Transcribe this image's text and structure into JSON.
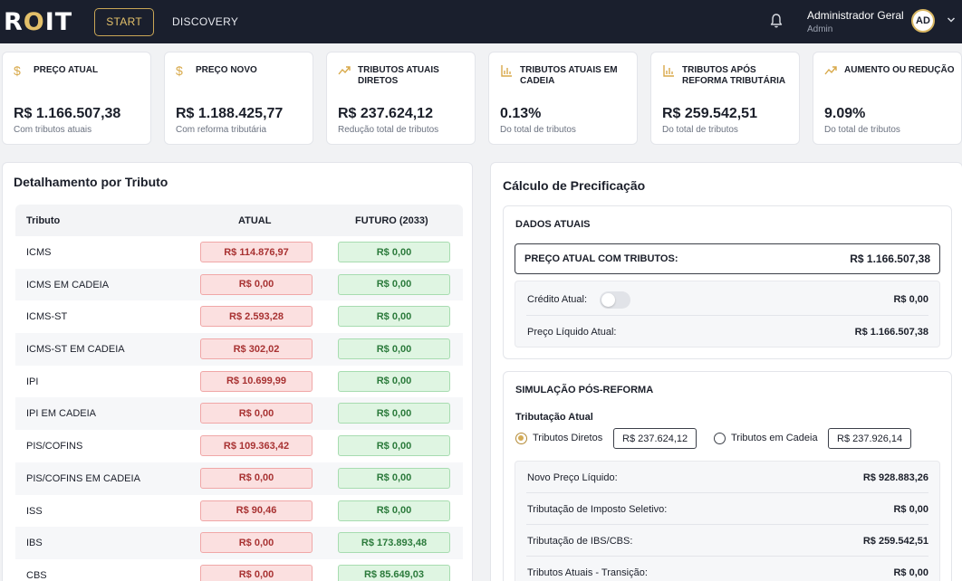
{
  "topbar": {
    "logo_prefix": "R",
    "logo_o": "O",
    "logo_suffix": "IT",
    "nav": {
      "start": "START",
      "discovery": "DISCOVERY"
    },
    "user": {
      "name": "Administrador Geral",
      "role": "Admin",
      "initials": "AD"
    }
  },
  "colors": {
    "accent": "#e3c06a",
    "topbar": "#1a1f2d",
    "negative": "#a83232",
    "positive": "#2b7a3b"
  },
  "cards": [
    {
      "icon": "dollar-icon",
      "title": "PREÇO ATUAL",
      "value": "R$ 1.166.507,38",
      "sub": "Com tributos atuais"
    },
    {
      "icon": "dollar-icon",
      "title": "PREÇO NOVO",
      "value": "R$ 1.188.425,77",
      "sub": "Com reforma tributária"
    },
    {
      "icon": "trend-up-icon",
      "title": "TRIBUTOS ATUAIS DIRETOS",
      "value": "R$ 237.624,12",
      "sub": "Redução total de tributos"
    },
    {
      "icon": "bar-chart-icon",
      "title": "TRIBUTOS ATUAIS EM CADEIA",
      "value": "0.13%",
      "sub": "Do total de tributos"
    },
    {
      "icon": "bar-chart-icon",
      "title": "TRIBUTOS APÓS REFORMA TRIBUTÁRIA",
      "value": "R$ 259.542,51",
      "sub": "Do total de tributos"
    },
    {
      "icon": "trend-up-icon",
      "title": "AUMENTO OU REDUÇÃO",
      "value": "9.09%",
      "sub": "Do total de tributos"
    }
  ],
  "detail": {
    "title": "Detalhamento por Tributo",
    "headers": {
      "tributo": "Tributo",
      "atual": "ATUAL",
      "futuro": "FUTURO (2033)"
    },
    "rows": [
      {
        "name": "ICMS",
        "atual": "R$ 114.876,97",
        "futuro": "R$ 0,00"
      },
      {
        "name": "ICMS EM CADEIA",
        "atual": "R$ 0,00",
        "futuro": "R$ 0,00"
      },
      {
        "name": "ICMS-ST",
        "atual": "R$ 2.593,28",
        "futuro": "R$ 0,00"
      },
      {
        "name": "ICMS-ST EM CADEIA",
        "atual": "R$ 302,02",
        "futuro": "R$ 0,00"
      },
      {
        "name": "IPI",
        "atual": "R$ 10.699,99",
        "futuro": "R$ 0,00"
      },
      {
        "name": "IPI EM CADEIA",
        "atual": "R$ 0,00",
        "futuro": "R$ 0,00"
      },
      {
        "name": "PIS/COFINS",
        "atual": "R$ 109.363,42",
        "futuro": "R$ 0,00"
      },
      {
        "name": "PIS/COFINS EM CADEIA",
        "atual": "R$ 0,00",
        "futuro": "R$ 0,00"
      },
      {
        "name": "ISS",
        "atual": "R$ 90,46",
        "futuro": "R$ 0,00"
      },
      {
        "name": "IBS",
        "atual": "R$ 0,00",
        "futuro": "R$ 173.893,48"
      },
      {
        "name": "CBS",
        "atual": "R$ 0,00",
        "futuro": "R$ 85.649,03"
      }
    ]
  },
  "pricing": {
    "title": "Cálculo de Precificação",
    "current": {
      "title": "DADOS ATUAIS",
      "price_label": "PREÇO ATUAL COM TRIBUTOS:",
      "price_value": "R$ 1.166.507,38",
      "credit_label": "Crédito Atual:",
      "credit_value": "R$ 0,00",
      "credit_enabled": false,
      "net_label": "Preço Líquido Atual:",
      "net_value": "R$ 1.166.507,38"
    },
    "simulation": {
      "title": "SIMULAÇÃO PÓS-REFORMA",
      "tax_label": "Tributação Atual",
      "options": [
        {
          "label": "Tributos Diretos",
          "value": "R$ 237.624,12",
          "selected": true
        },
        {
          "label": "Tributos em Cadeia",
          "value": "R$ 237.926,14",
          "selected": false
        }
      ],
      "results": [
        {
          "label": "Novo Preço Líquido:",
          "value": "R$ 928.883,26"
        },
        {
          "label": "Tributação de Imposto Seletivo:",
          "value": "R$ 0,00"
        },
        {
          "label": "Tributação de IBS/CBS:",
          "value": "R$ 259.542,51"
        },
        {
          "label": "Tributos Atuais - Transição:",
          "value": "R$ 0,00"
        }
      ]
    }
  }
}
